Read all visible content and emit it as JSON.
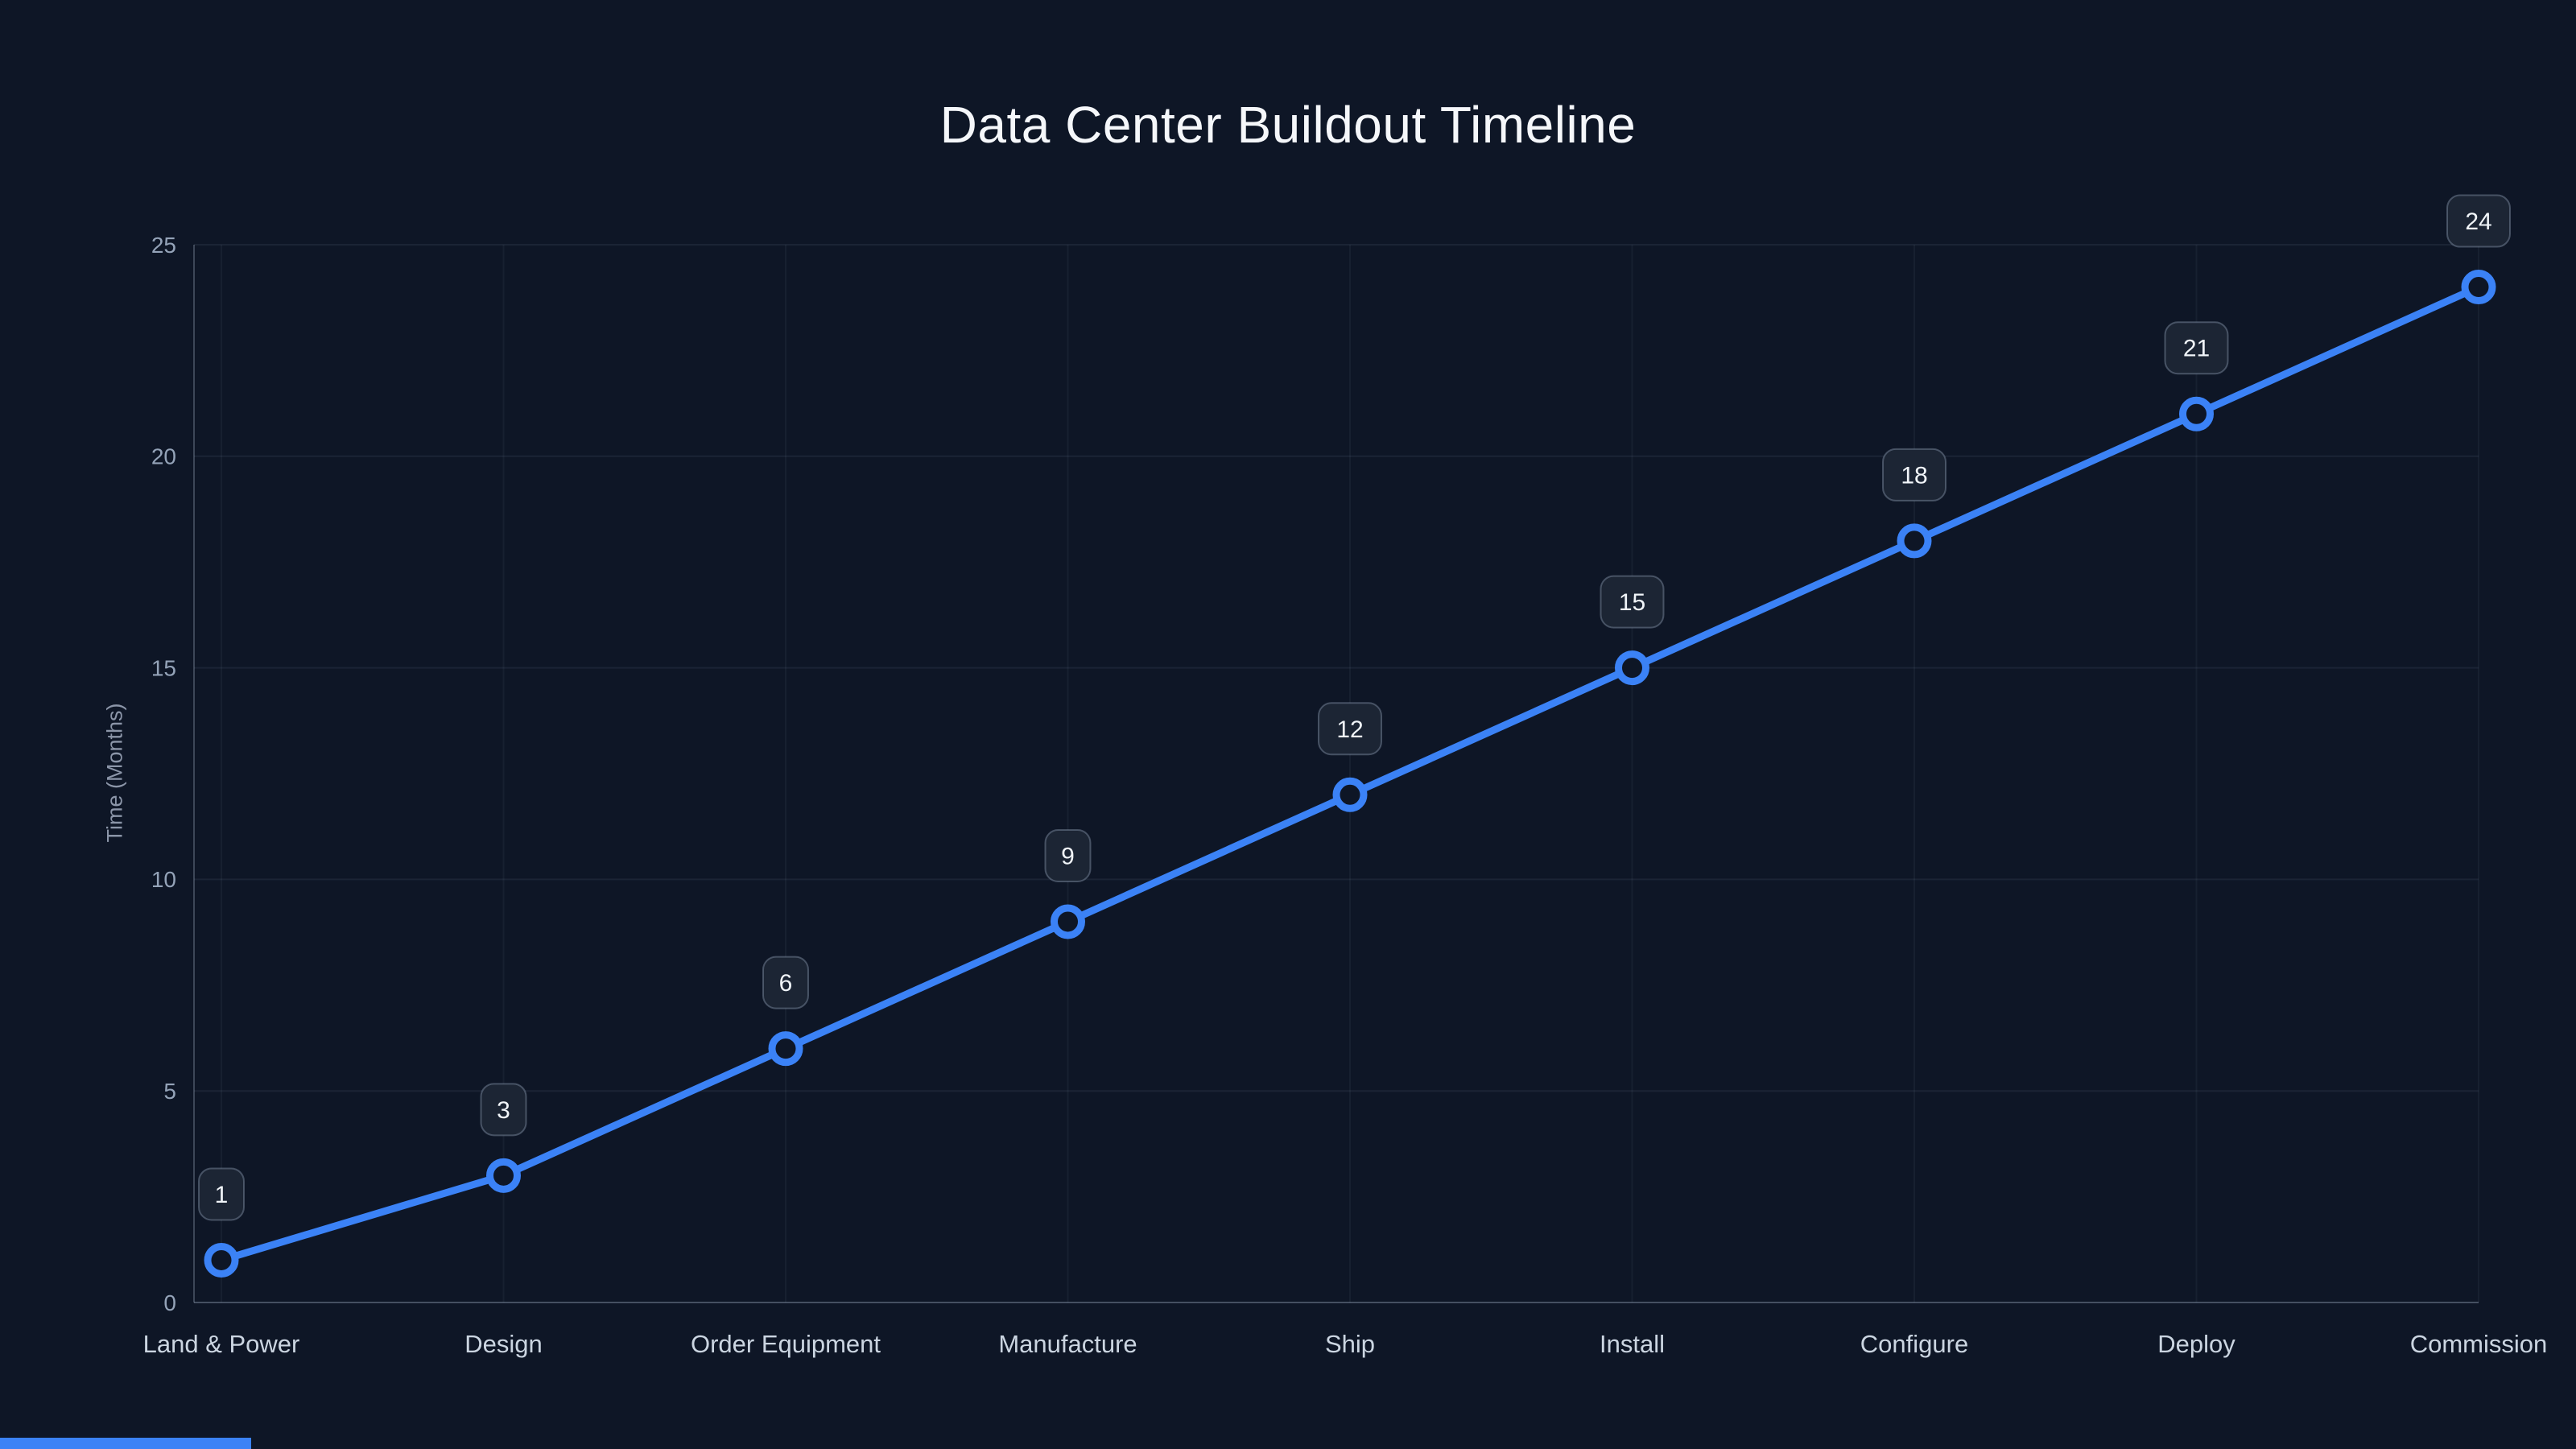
{
  "page": {
    "background": "#0e1626",
    "accent": "#3b82f6"
  },
  "chart_data": {
    "type": "line",
    "title": "Data Center Buildout Timeline",
    "xlabel": "",
    "ylabel": "Time (Months)",
    "categories": [
      "Land & Power",
      "Design",
      "Order Equipment",
      "Manufacture",
      "Ship",
      "Install",
      "Configure",
      "Deploy",
      "Commission"
    ],
    "values": [
      1,
      3,
      6,
      9,
      12,
      15,
      18,
      21,
      24
    ],
    "ylim": [
      0,
      25
    ],
    "yticks": [
      0,
      5,
      10,
      15,
      20,
      25
    ],
    "grid": true,
    "legend": "none",
    "line_color": "#3b82f6",
    "marker_fill": "#0e1626",
    "label_box_fill": "#1c2534",
    "label_box_border": "rgba(148,163,184,0.4)",
    "tick_label_color": "#94a3b8",
    "category_label_color": "#cbd5e1",
    "data_label_color": "#f1f5f9"
  }
}
